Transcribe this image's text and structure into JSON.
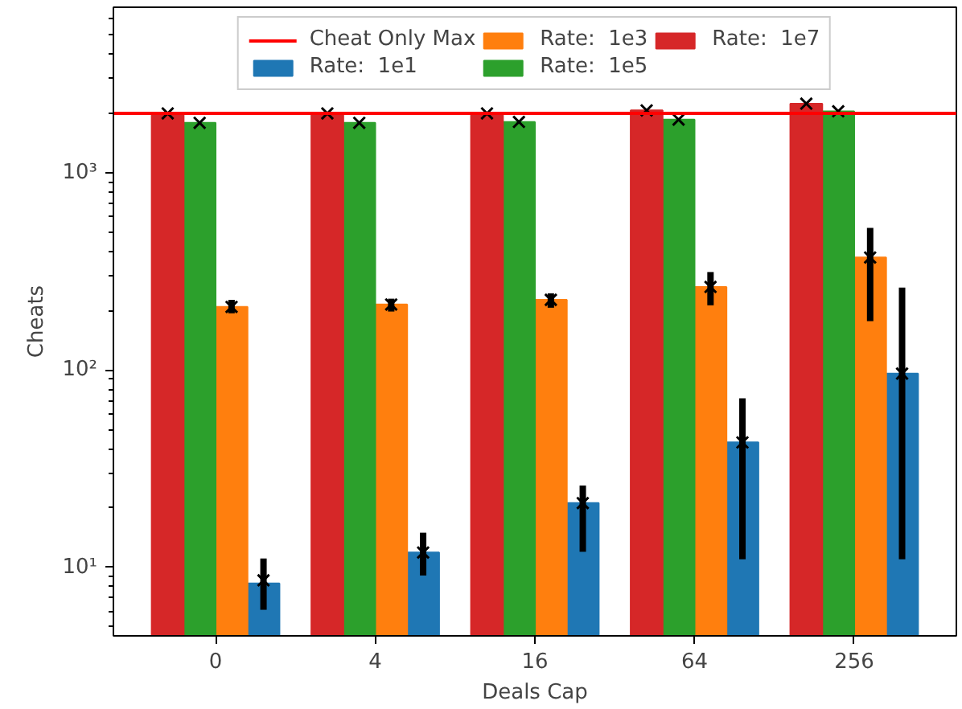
{
  "chart_data": {
    "type": "bar",
    "xlabel": "Deals Cap",
    "ylabel": "Cheats",
    "categories": [
      "0",
      "4",
      "16",
      "64",
      "256"
    ],
    "log": true,
    "ylim": [
      4.5,
      6900
    ],
    "yticks": [
      {
        "value": 10,
        "label": "10¹"
      },
      {
        "value": 100,
        "label": "10²"
      },
      {
        "value": 1000,
        "label": "10³"
      }
    ],
    "legend": "top",
    "grid": false,
    "ref_lines": [
      {
        "axis": "y",
        "value": 2000,
        "label": "Cheat Only Max",
        "color": "#ff0000"
      }
    ],
    "series": [
      {
        "name": "Rate:  1e1",
        "color": "#1f77b4",
        "values": [
          8.3,
          11.9,
          21.2,
          43,
          96
        ],
        "errors": [
          [
            6.1,
            11.1
          ],
          [
            9.1,
            15
          ],
          [
            12,
            26
          ],
          [
            11,
            72
          ],
          [
            11,
            262
          ]
        ]
      },
      {
        "name": "Rate:  1e3",
        "color": "#ff7f0e",
        "values": [
          209,
          215,
          227,
          264,
          372
        ],
        "errors": [
          [
            194,
            227
          ],
          [
            198,
            230
          ],
          [
            207,
            245
          ],
          [
            213,
            314
          ],
          [
            177,
            525
          ]
        ]
      },
      {
        "name": "Rate:  1e5",
        "color": "#2ca02c",
        "values": [
          1790,
          1790,
          1810,
          1860,
          2050
        ]
      },
      {
        "name": "Rate:  1e7",
        "color": "#d62728",
        "values": [
          2000,
          2000,
          2000,
          2070,
          2240
        ]
      },
      {
        "type": "scatter",
        "marker": "cross",
        "color": "#000000",
        "x": [
          "0",
          "4",
          "16",
          "64",
          "256"
        ],
        "values": [
          8.6,
          11.9,
          21.2,
          43,
          96
        ]
      },
      {
        "type": "scatter",
        "marker": "cross",
        "color": "#000000",
        "x": [
          "0",
          "4",
          "16",
          "64",
          "256"
        ],
        "values": [
          209,
          215,
          227,
          264,
          372
        ]
      },
      {
        "type": "scatter",
        "marker": "cross",
        "color": "#000000",
        "x": [
          "0",
          "4",
          "16",
          "64",
          "256"
        ],
        "values": [
          1790,
          1790,
          1810,
          1860,
          2050
        ]
      },
      {
        "type": "scatter",
        "marker": "cross",
        "color": "#000000",
        "x": [
          "0",
          "4",
          "16",
          "64",
          "256"
        ],
        "values": [
          2000,
          2000,
          2000,
          2070,
          2240
        ]
      }
    ]
  }
}
